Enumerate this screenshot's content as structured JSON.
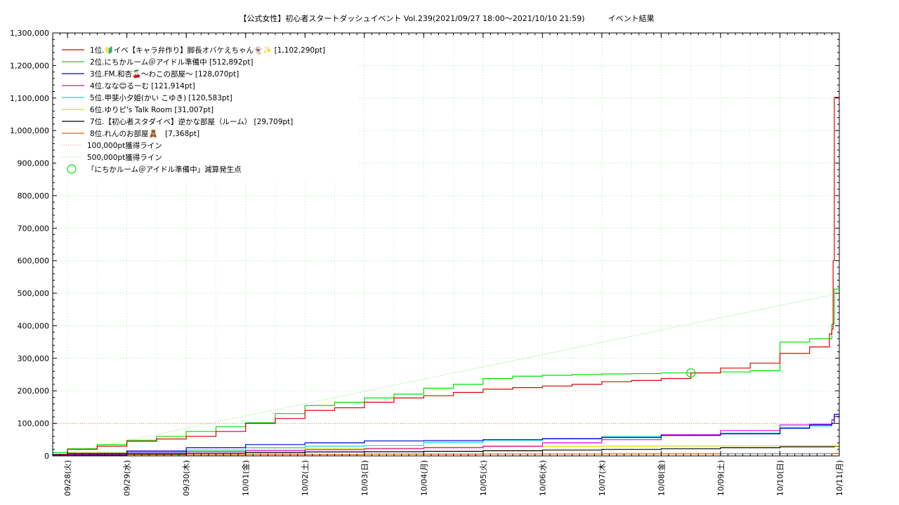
{
  "chart_data": {
    "type": "line",
    "title": "【公式女性】初心者スタートダッシュイベント Vol.239(2021/09/27 18:00～2021/10/10 21:59)　　　イベント結果",
    "xlabel": "",
    "ylabel": "",
    "ylim": [
      0,
      1300000
    ],
    "xlim": [
      "2021-09-27 18:00",
      "2021-10-11 00:00"
    ],
    "y_ticks": [
      0,
      100000,
      200000,
      300000,
      400000,
      500000,
      600000,
      700000,
      800000,
      900000,
      1000000,
      1100000,
      1200000,
      1300000
    ],
    "y_tick_labels": [
      "0",
      "100,000",
      "200,000",
      "300,000",
      "400,000",
      "500,000",
      "600,000",
      "700,000",
      "800,000",
      "900,000",
      "1,000,000",
      "1,100,000",
      "1,200,000",
      "1,300,000"
    ],
    "x_ticks": [
      "2021-09-28",
      "2021-09-29",
      "2021-09-30",
      "2021-10-01",
      "2021-10-02",
      "2021-10-03",
      "2021-10-04",
      "2021-10-05",
      "2021-10-06",
      "2021-10-07",
      "2021-10-08",
      "2021-10-09",
      "2021-10-10",
      "2021-10-11"
    ],
    "x_tick_labels": [
      "09/28(火)",
      "09/29(水)",
      "09/30(木)",
      "10/01(金)",
      "10/02(土)",
      "10/03(日)",
      "10/04(月)",
      "10/05(火)",
      "10/06(水)",
      "10/07(木)",
      "10/08(金)",
      "10/09(土)",
      "10/10(日)",
      "10/11(月)"
    ],
    "grid": true,
    "legend_position": "top-left",
    "series": [
      {
        "name": "1位.🔰イベ【キャラ弁作り】脚長オバケえちゃん👻✨ [1,102,290pt]",
        "color": "#e00000",
        "x": [
          "2021-09-27 18:00",
          "2021-09-28 00:00",
          "2021-09-28 12:00",
          "2021-09-29 00:00",
          "2021-09-29 12:00",
          "2021-09-30 00:00",
          "2021-09-30 12:00",
          "2021-10-01 00:00",
          "2021-10-01 12:00",
          "2021-10-02 00:00",
          "2021-10-02 12:00",
          "2021-10-03 00:00",
          "2021-10-03 12:00",
          "2021-10-04 00:00",
          "2021-10-04 12:00",
          "2021-10-05 00:00",
          "2021-10-05 12:00",
          "2021-10-06 00:00",
          "2021-10-06 12:00",
          "2021-10-07 00:00",
          "2021-10-07 12:00",
          "2021-10-08 00:00",
          "2021-10-08 12:00",
          "2021-10-09 00:00",
          "2021-10-09 12:00",
          "2021-10-10 00:00",
          "2021-10-10 12:00",
          "2021-10-10 20:00",
          "2021-10-10 21:00",
          "2021-10-10 21:30",
          "2021-10-10 21:59",
          "2021-10-11 00:00"
        ],
        "y": [
          5000,
          20000,
          30000,
          45000,
          52000,
          60000,
          75000,
          100000,
          115000,
          140000,
          148000,
          165000,
          178000,
          185000,
          195000,
          205000,
          210000,
          215000,
          220000,
          228000,
          232000,
          238000,
          255000,
          270000,
          285000,
          315000,
          335000,
          375000,
          390000,
          600000,
          1102290,
          1102290
        ]
      },
      {
        "name": "2位.にちかルーム＠アイドル準備中 [512,892pt]",
        "color": "#00e000",
        "x": [
          "2021-09-27 18:00",
          "2021-09-28 00:00",
          "2021-09-28 12:00",
          "2021-09-29 00:00",
          "2021-09-29 12:00",
          "2021-09-30 00:00",
          "2021-09-30 12:00",
          "2021-10-01 00:00",
          "2021-10-01 12:00",
          "2021-10-02 00:00",
          "2021-10-02 12:00",
          "2021-10-03 00:00",
          "2021-10-03 12:00",
          "2021-10-04 00:00",
          "2021-10-04 12:00",
          "2021-10-05 00:00",
          "2021-10-05 12:00",
          "2021-10-06 00:00",
          "2021-10-06 12:00",
          "2021-10-07 00:00",
          "2021-10-07 12:00",
          "2021-10-08 00:00",
          "2021-10-08 12:00",
          "2021-10-09 00:00",
          "2021-10-09 12:00",
          "2021-10-10 00:00",
          "2021-10-10 12:00",
          "2021-10-10 21:00",
          "2021-10-10 21:59",
          "2021-10-11 00:00"
        ],
        "y": [
          10000,
          22000,
          35000,
          48000,
          60000,
          75000,
          90000,
          102000,
          130000,
          155000,
          165000,
          178000,
          190000,
          208000,
          220000,
          238000,
          245000,
          248000,
          250000,
          252000,
          253000,
          255000,
          255000,
          258000,
          262000,
          350000,
          360000,
          405000,
          512892,
          512892
        ]
      },
      {
        "name": "3位.FM.和杏🍒〜わこの部屋〜 [128,070pt]",
        "color": "#0000d0",
        "x": [
          "2021-09-27 18:00",
          "2021-09-28 00:00",
          "2021-09-29 00:00",
          "2021-09-30 00:00",
          "2021-10-01 00:00",
          "2021-10-02 00:00",
          "2021-10-03 00:00",
          "2021-10-04 00:00",
          "2021-10-05 00:00",
          "2021-10-06 00:00",
          "2021-10-07 00:00",
          "2021-10-08 00:00",
          "2021-10-09 00:00",
          "2021-10-10 00:00",
          "2021-10-10 12:00",
          "2021-10-10 21:00",
          "2021-10-10 21:59",
          "2021-10-11 00:00"
        ],
        "y": [
          3000,
          8000,
          15000,
          25000,
          35000,
          40000,
          46000,
          47000,
          50000,
          53000,
          57000,
          63000,
          68000,
          85000,
          95000,
          100000,
          128070,
          128070
        ]
      },
      {
        "name": "4位.なな😊るーむ [121,914pt]",
        "color": "#e000e0",
        "x": [
          "2021-09-27 18:00",
          "2021-09-28 00:00",
          "2021-09-29 00:00",
          "2021-09-30 00:00",
          "2021-10-01 00:00",
          "2021-10-02 00:00",
          "2021-10-03 00:00",
          "2021-10-04 00:00",
          "2021-10-05 00:00",
          "2021-10-06 00:00",
          "2021-10-07 00:00",
          "2021-10-08 00:00",
          "2021-10-09 00:00",
          "2021-10-10 00:00",
          "2021-10-10 12:00",
          "2021-10-10 21:00",
          "2021-10-10 21:59",
          "2021-10-11 00:00"
        ],
        "y": [
          2000,
          5000,
          9000,
          13000,
          16000,
          19000,
          22000,
          25000,
          30000,
          40000,
          50000,
          65000,
          78000,
          95000,
          97000,
          110000,
          121914,
          121914
        ]
      },
      {
        "name": "5位.甲斐小夕姫(かい こゆき) [120,583pt]",
        "color": "#00e0e0",
        "x": [
          "2021-09-27 18:00",
          "2021-09-28 00:00",
          "2021-09-29 00:00",
          "2021-09-30 00:00",
          "2021-10-01 00:00",
          "2021-10-02 00:00",
          "2021-10-03 00:00",
          "2021-10-04 00:00",
          "2021-10-05 00:00",
          "2021-10-06 00:00",
          "2021-10-07 00:00",
          "2021-10-08 00:00",
          "2021-10-09 00:00",
          "2021-10-10 00:00",
          "2021-10-10 12:00",
          "2021-10-10 21:00",
          "2021-10-10 21:59",
          "2021-10-11 00:00"
        ],
        "y": [
          2000,
          6000,
          12000,
          18000,
          25000,
          30000,
          32000,
          42000,
          48000,
          52000,
          60000,
          63000,
          70000,
          88000,
          92000,
          112000,
          120583,
          120583
        ]
      },
      {
        "name": "6位.ゆりピ's Talk Room [31,007pt]",
        "color": "#e0e000",
        "x": [
          "2021-09-27 18:00",
          "2021-09-28 00:00",
          "2021-09-29 00:00",
          "2021-09-30 00:00",
          "2021-10-01 00:00",
          "2021-10-02 00:00",
          "2021-10-03 00:00",
          "2021-10-04 00:00",
          "2021-10-05 00:00",
          "2021-10-06 00:00",
          "2021-10-07 00:00",
          "2021-10-08 00:00",
          "2021-10-09 00:00",
          "2021-10-10 00:00",
          "2021-10-10 21:59",
          "2021-10-11 00:00"
        ],
        "y": [
          2000,
          10000,
          14000,
          17000,
          20000,
          22000,
          24000,
          26000,
          28000,
          29000,
          30000,
          30500,
          30800,
          31000,
          31007,
          31007
        ]
      },
      {
        "name": "7位.【初心者スタダイベ】逆かな部屋（ルーム） [29,709pt]",
        "color": "#000000",
        "x": [
          "2021-09-27 18:00",
          "2021-09-28 00:00",
          "2021-09-29 00:00",
          "2021-09-30 00:00",
          "2021-10-01 00:00",
          "2021-10-02 00:00",
          "2021-10-03 00:00",
          "2021-10-04 00:00",
          "2021-10-05 00:00",
          "2021-10-06 00:00",
          "2021-10-07 00:00",
          "2021-10-08 00:00",
          "2021-10-09 00:00",
          "2021-10-10 00:00",
          "2021-10-10 21:59",
          "2021-10-11 00:00"
        ],
        "y": [
          1000,
          3000,
          6000,
          8000,
          10000,
          12000,
          13000,
          14000,
          16000,
          18000,
          20000,
          22000,
          25000,
          28000,
          29709,
          29709
        ]
      },
      {
        "name": "8位.れんのお部屋🧸　[7,368pt]",
        "color": "#e06000",
        "x": [
          "2021-09-27 18:00",
          "2021-09-28 00:00",
          "2021-09-29 00:00",
          "2021-10-01 00:00",
          "2021-10-03 00:00",
          "2021-10-05 00:00",
          "2021-10-07 00:00",
          "2021-10-09 00:00",
          "2021-10-10 21:59",
          "2021-10-11 00:00"
        ],
        "y": [
          500,
          2000,
          3500,
          4500,
          5500,
          6000,
          6500,
          7000,
          7368,
          7368
        ]
      }
    ],
    "reference_lines": [
      {
        "name": "100,000pt獲得ライン",
        "color": "#ff8080"
      },
      {
        "name": "500,000pt獲得ライン",
        "color": "#80e080"
      }
    ],
    "marker": {
      "name": "「にちかルーム＠アイドル準備中」減算発生点",
      "color": "#00e000",
      "x": "2021-10-08 12:00",
      "y": 255000
    }
  }
}
